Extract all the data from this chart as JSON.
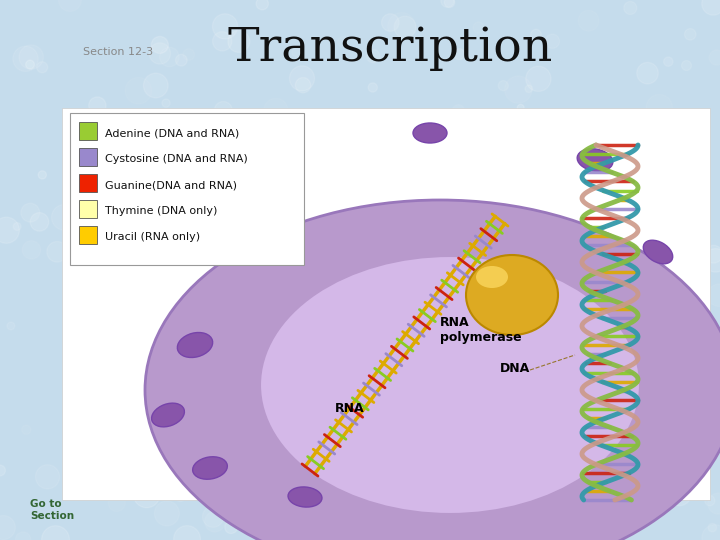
{
  "title": "Transcription",
  "section_label": "Section 12-3",
  "background_color": "#c5dcec",
  "title_fontsize": 34,
  "title_font": "serif",
  "section_fontsize": 8,
  "section_color": "#888888",
  "legend_items": [
    {
      "label": "Adenine (DNA and RNA)",
      "color": "#99cc33"
    },
    {
      "label": "Cystosine (DNA and RNA)",
      "color": "#9988cc"
    },
    {
      "label": "Guanine(DNA and RNA)",
      "color": "#ee2200"
    },
    {
      "label": "Thymine (DNA only)",
      "color": "#ffffaa"
    },
    {
      "label": "Uracil (RNA only)",
      "color": "#ffcc00"
    }
  ],
  "legend_box_color": "#ffffff",
  "legend_border_color": "#999999",
  "annotation_rna_polymerase": "RNA\npolymerase",
  "annotation_dna": "DNA",
  "annotation_rna": "RNA",
  "goto_text": "Go to\nSection",
  "goto_color": "#336633",
  "cell_outer_color": "#b899cc",
  "cell_outer_edge": "#9977bb",
  "cell_inner_color": "#d4b8e8",
  "cell_inner_edge": "#b899cc",
  "pore_color": "#8855aa",
  "sphere_color": "#ddaa22",
  "sphere_highlight": "#ffdd66",
  "rna_strand_color": "#ddaa00",
  "helix_strand1": "#3399aa",
  "helix_strand2": "#88bb44",
  "helix_strand3": "#cc9988",
  "rung_colors": [
    "#cc2211",
    "#88cc22",
    "#ddaa00",
    "#9988cc"
  ],
  "bg_dot_color": "#ffffff"
}
